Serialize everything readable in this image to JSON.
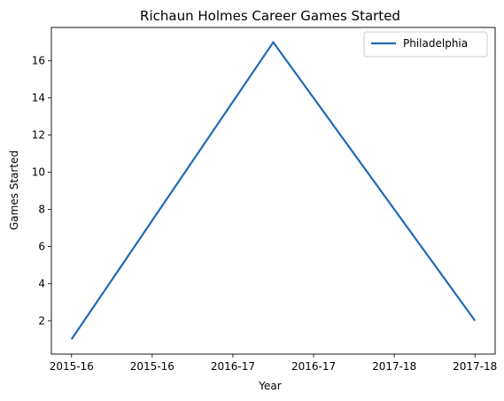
{
  "chart_data": {
    "type": "line",
    "title": "Richaun Holmes Career Games Started",
    "xlabel": "Year",
    "ylabel": "Games Started",
    "x_tick_labels": [
      "2015-16",
      "2015-16",
      "2016-17",
      "2016-17",
      "2017-18",
      "2017-18"
    ],
    "y_ticks": [
      2,
      4,
      6,
      8,
      10,
      12,
      14,
      16
    ],
    "xlim": [
      -0.1,
      2.1
    ],
    "ylim": [
      0.2,
      17.8
    ],
    "x": [
      0,
      1,
      2
    ],
    "x_labels": [
      "2015-16",
      "2016-17",
      "2017-18"
    ],
    "series": [
      {
        "name": "Philadelphia",
        "values": [
          1,
          17,
          2
        ],
        "color": "#1f6bb4"
      }
    ],
    "legend_position": "upper right",
    "grid": false
  }
}
